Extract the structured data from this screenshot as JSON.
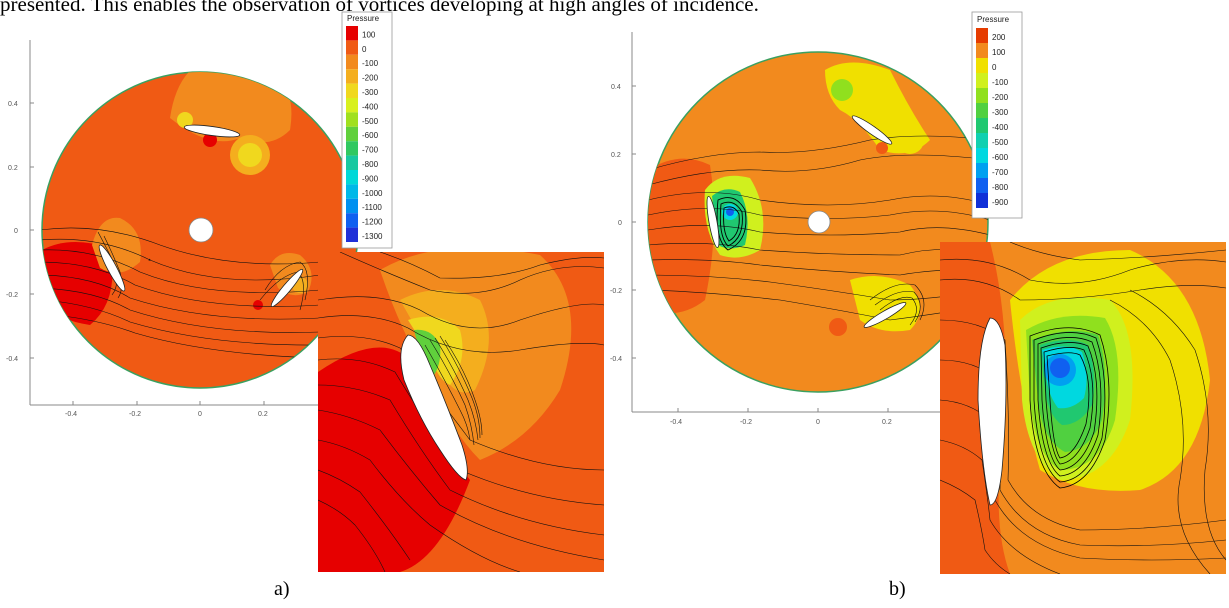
{
  "header": {
    "text": "presented. This enables the observation of vortices developing at high angles of incidence."
  },
  "colors": {
    "red": "#e60000",
    "red_orange": "#f05a14",
    "orange": "#f49a1a",
    "yellow": "#f0f000",
    "green": "#3cc83c",
    "cyan": "#00d8d8",
    "blue": "#1a4cf0"
  },
  "panels": [
    {
      "caption": "a)",
      "legend_title": "Pressure",
      "legend_levels": [
        "100",
        "0",
        "-100",
        "-200",
        "-300",
        "-400",
        "-500",
        "-600",
        "-700",
        "-800",
        "-900",
        "-1000",
        "-1100",
        "-1200",
        "-1300"
      ],
      "legend_colors": [
        "#e60000",
        "#f05a14",
        "#f28a1e",
        "#f4ae1e",
        "#f0d81e",
        "#d8f01e",
        "#a0e01e",
        "#60d03c",
        "#30c860",
        "#18c8a0",
        "#00d8d8",
        "#00b8e8",
        "#0090f0",
        "#1060f0",
        "#2030d8"
      ],
      "x_ticks": [
        "-0.4",
        "-0.2",
        "0",
        "0.2"
      ],
      "y_ticks": [
        "0.4",
        "0.2",
        "0",
        "-0.2",
        "-0.4"
      ]
    },
    {
      "caption": "b)",
      "legend_title": "Pressure",
      "legend_levels": [
        "200",
        "100",
        "0",
        "-100",
        "-200",
        "-300",
        "-400",
        "-500",
        "-600",
        "-700",
        "-800",
        "-900"
      ],
      "legend_colors": [
        "#e63c00",
        "#f28a1e",
        "#f0e000",
        "#d0f01e",
        "#90e01e",
        "#50d040",
        "#20c870",
        "#10d0b0",
        "#00d8e0",
        "#00a0f0",
        "#1060f0",
        "#1030d8"
      ],
      "x_ticks": [
        "-0.4",
        "-0.2",
        "0",
        "0.2"
      ],
      "y_ticks": [
        "0.4",
        "0.2",
        "0",
        "-0.2",
        "-0.4"
      ]
    }
  ]
}
